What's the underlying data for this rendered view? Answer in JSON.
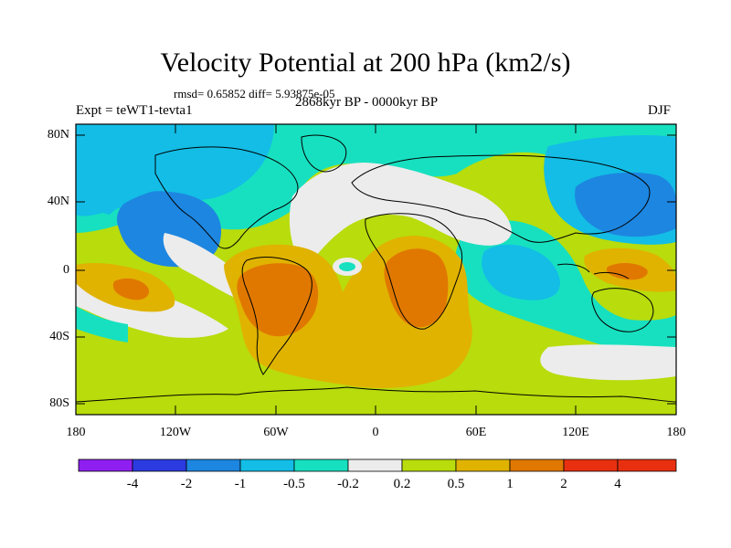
{
  "title": "Velocity Potential at 200 hPa (km2/s)",
  "stats_line": "rmsd= 0.65852 diff= 5.93875e-05",
  "period": "2868kyr BP - 0000kyr BP",
  "experiment": "Expt = teWT1-tevta1",
  "season": "DJF",
  "latitude_labels": [
    "80N",
    "40N",
    "0",
    "40S",
    "80S"
  ],
  "longitude_labels": [
    "180",
    "120W",
    "60W",
    "0",
    "60E",
    "120E",
    "180"
  ],
  "colorbar": {
    "labels": [
      "-4",
      "-2",
      "-1",
      "-0.5",
      "-0.2",
      "0.2",
      "0.5",
      "1",
      "2",
      "4"
    ],
    "colors": [
      "#8f1ff0",
      "#2b3be0",
      "#1d86e0",
      "#13bde6",
      "#17e0c0",
      "#ececec",
      "#b8dc0c",
      "#e0b300",
      "#e07800",
      "#e83010"
    ]
  },
  "colors": {
    "neg_light": "#17e0c0",
    "neg_medium": "#13bde6",
    "neg_strong": "#1d86e0",
    "neutral": "#ececec",
    "pos_light": "#b8dc0c",
    "pos_medium": "#e0b300",
    "pos_strong": "#e07800"
  }
}
